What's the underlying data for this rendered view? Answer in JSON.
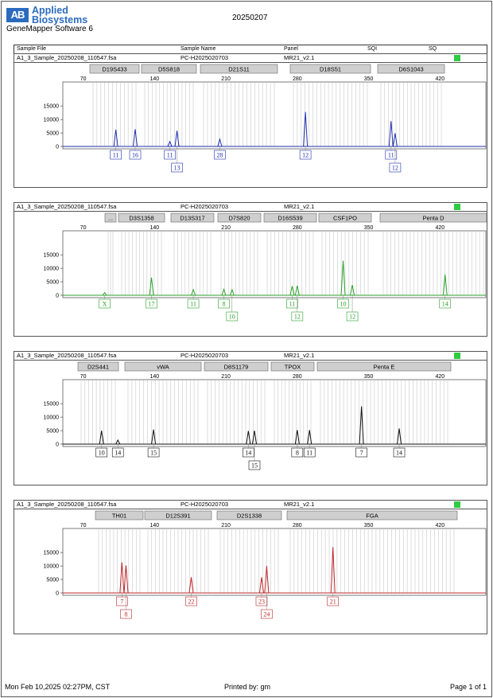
{
  "header": {
    "logo_mark": "AB",
    "logo_line1": "Applied",
    "logo_line2": "Biosystems",
    "software": "GeneMapper Software 6",
    "title": "20250207"
  },
  "columns": [
    "Sample File",
    "Sample Name",
    "Panel",
    "SQI",
    "SQ"
  ],
  "axis_ticks": [
    70,
    140,
    210,
    280,
    350,
    420
  ],
  "y_ticks": [
    0,
    5000,
    10000,
    15000
  ],
  "panels": [
    {
      "sample_file": "A1_3_Sample_20250208_110547.fsa",
      "sample_name": "PC-H2025020703",
      "panel": "MR21_v2.1",
      "color": "#1f2fae",
      "markers": [
        "D19S433",
        "D5S818",
        "D21S11",
        "D18S51",
        "D6S1043"
      ],
      "peaks": [
        {
          "bp": 102,
          "h": 6200,
          "label": "11",
          "row": 0
        },
        {
          "bp": 121,
          "h": 6400,
          "label": "16",
          "row": 0
        },
        {
          "bp": 155,
          "h": 1800,
          "label": "11",
          "row": 0
        },
        {
          "bp": 162,
          "h": 5800,
          "label": "13",
          "row": 1
        },
        {
          "bp": 204,
          "h": 2700,
          "label": "28",
          "row": 0
        },
        {
          "bp": 288,
          "h": 12800,
          "label": "12",
          "row": 0
        },
        {
          "bp": 372,
          "h": 9400,
          "label": "11",
          "row": 0
        },
        {
          "bp": 376,
          "h": 4900,
          "label": "12",
          "row": 1
        }
      ]
    },
    {
      "sample_file": "A1_3_Sample_20250208_110547.fsa",
      "sample_name": "PC-H2025020703",
      "panel": "MR21_v2.1",
      "color": "#2aa02a",
      "markers": [
        "...",
        "D3S1358",
        "D13S317",
        "D7S820",
        "D16S539",
        "CSF1PO",
        "Penta D"
      ],
      "peaks": [
        {
          "bp": 91,
          "h": 1000,
          "label": "X",
          "row": 0
        },
        {
          "bp": 137,
          "h": 6600,
          "label": "17",
          "row": 0
        },
        {
          "bp": 178,
          "h": 2100,
          "label": "11",
          "row": 0
        },
        {
          "bp": 208,
          "h": 2200,
          "label": "8",
          "row": 0
        },
        {
          "bp": 216,
          "h": 2100,
          "label": "10",
          "row": 1
        },
        {
          "bp": 275,
          "h": 3400,
          "label": "11",
          "row": 0
        },
        {
          "bp": 280,
          "h": 3500,
          "label": "12",
          "row": 1
        },
        {
          "bp": 325,
          "h": 12800,
          "label": "10",
          "row": 0
        },
        {
          "bp": 334,
          "h": 3800,
          "label": "12",
          "row": 1
        },
        {
          "bp": 425,
          "h": 7700,
          "label": "14",
          "row": 0
        }
      ]
    },
    {
      "sample_file": "A1_3_Sample_20250208_110547.fsa",
      "sample_name": "PC-H2025020703",
      "panel": "MR21_v2.1",
      "color": "#111111",
      "markers": [
        "D2S441",
        "vWA",
        "D8S1179",
        "TPOX",
        "Penta E"
      ],
      "peaks": [
        {
          "bp": 88,
          "h": 5000,
          "label": "10",
          "row": 0
        },
        {
          "bp": 104,
          "h": 1500,
          "label": "14",
          "row": 0
        },
        {
          "bp": 139,
          "h": 5400,
          "label": "15",
          "row": 0
        },
        {
          "bp": 232,
          "h": 4900,
          "label": "14",
          "row": 0
        },
        {
          "bp": 238,
          "h": 5000,
          "label": "15",
          "row": 1
        },
        {
          "bp": 280,
          "h": 5200,
          "label": "8",
          "row": 0
        },
        {
          "bp": 292,
          "h": 5200,
          "label": "11",
          "row": 0
        },
        {
          "bp": 343,
          "h": 14000,
          "label": "7",
          "row": 0
        },
        {
          "bp": 380,
          "h": 5800,
          "label": "14",
          "row": 0
        }
      ]
    },
    {
      "sample_file": "A1_3_Sample_20250208_110547.fsa",
      "sample_name": "PC-H2025020703",
      "panel": "MR21_v2.1",
      "color": "#c0282a",
      "markers": [
        "TH01",
        "D12S391",
        "D2S1338",
        "FGA"
      ],
      "peaks": [
        {
          "bp": 108,
          "h": 11300,
          "label": "7",
          "row": 0
        },
        {
          "bp": 112,
          "h": 10200,
          "label": "8",
          "row": 1
        },
        {
          "bp": 176,
          "h": 5800,
          "label": "22",
          "row": 0
        },
        {
          "bp": 245,
          "h": 5800,
          "label": "23",
          "row": 0
        },
        {
          "bp": 250,
          "h": 10000,
          "label": "24",
          "row": 1
        },
        {
          "bp": 315,
          "h": 17000,
          "label": "21",
          "row": 0
        }
      ]
    }
  ],
  "footer": {
    "datetime": "Mon Feb 10,2025 02:27PM, CST",
    "printed_by": "Printed by: gm",
    "page": "Page 1 of 1"
  }
}
